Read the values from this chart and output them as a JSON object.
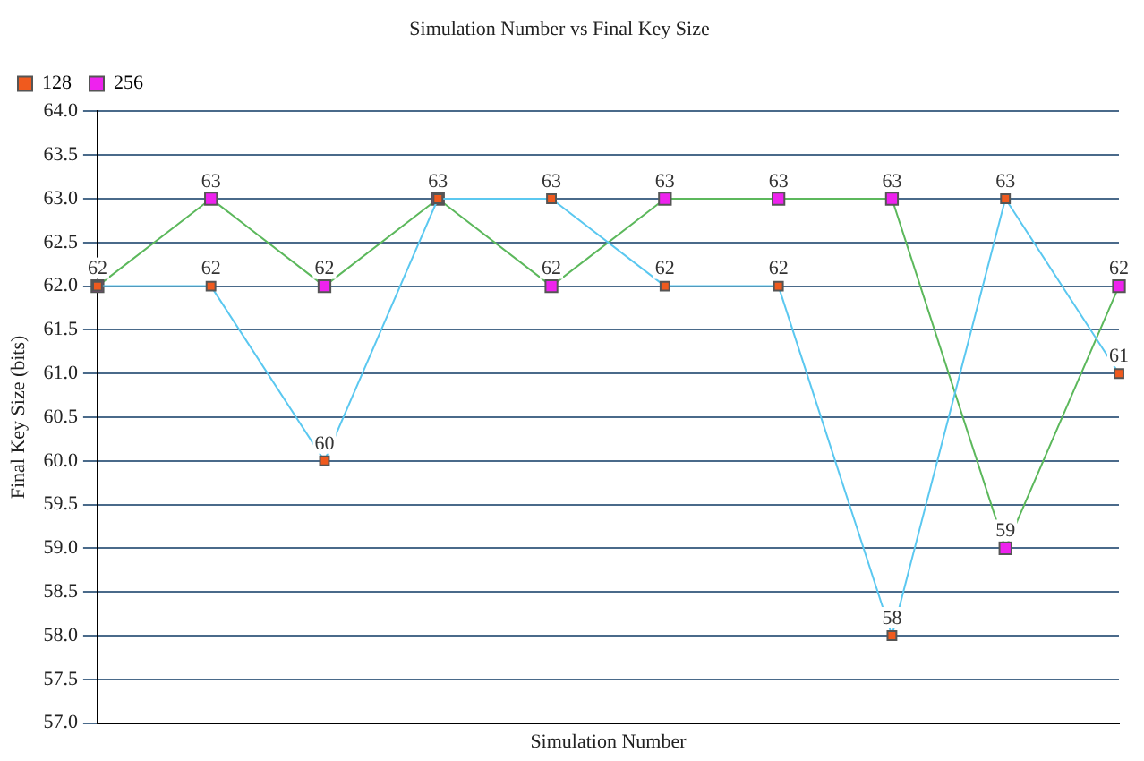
{
  "chart_data": {
    "type": "line",
    "title": "Simulation Number vs Final Key Size",
    "xlabel": "Simulation Number",
    "ylabel": "Final Key Size (bits)",
    "categories": [
      null,
      null,
      null,
      null,
      null,
      null,
      null,
      null,
      null,
      null
    ],
    "series": [
      {
        "name": "128",
        "color": "#f05a1e",
        "values": [
          62,
          62,
          60,
          63,
          63,
          62,
          62,
          58,
          63,
          61
        ],
        "value_labels": [
          "62",
          "62",
          "60",
          "63",
          "63",
          "62",
          "62",
          "58",
          "63",
          "61"
        ]
      },
      {
        "name": "256",
        "color": "#ee22ee",
        "values": [
          62,
          63,
          62,
          63,
          62,
          63,
          63,
          63,
          59,
          62
        ],
        "value_labels": [
          null,
          "63",
          "62",
          null,
          "62",
          "63",
          "63",
          "63",
          "59",
          "62"
        ]
      }
    ],
    "ylim": [
      57,
      64
    ],
    "yticks": [
      {
        "value": 57,
        "label": "57.0"
      },
      {
        "value": 57.5,
        "label": "57.5"
      },
      {
        "value": 58,
        "label": "58.0"
      },
      {
        "value": 58.5,
        "label": "58.5"
      },
      {
        "value": 59,
        "label": "59.0"
      },
      {
        "value": 59.5,
        "label": "59.5"
      },
      {
        "value": 60,
        "label": "60.0"
      },
      {
        "value": 60.5,
        "label": "60.5"
      },
      {
        "value": 61,
        "label": "61.0"
      },
      {
        "value": 61.5,
        "label": "61.5"
      },
      {
        "value": 62,
        "label": "62.0"
      },
      {
        "value": 62.5,
        "label": "62.5"
      },
      {
        "value": 63,
        "label": "63.0"
      },
      {
        "value": 63.5,
        "label": "63.5"
      },
      {
        "value": 64,
        "label": "64.0"
      }
    ],
    "grid": "y",
    "legend": "top left",
    "marker": "square"
  }
}
